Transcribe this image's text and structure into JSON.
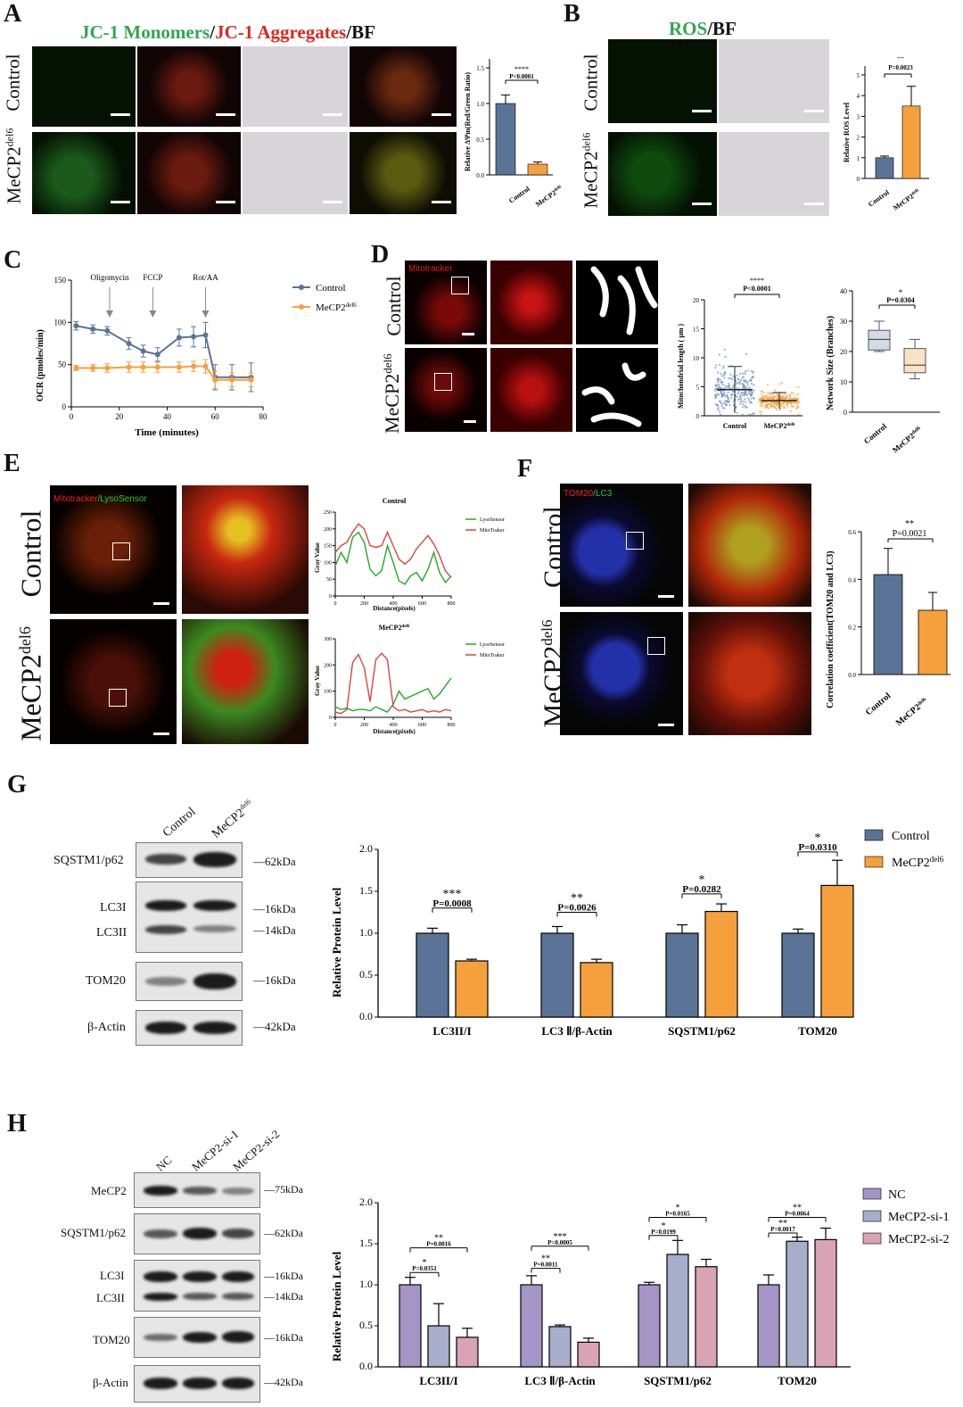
{
  "panels": {
    "A": {
      "label": "A",
      "title_green": "JC-1 Monomers",
      "title_sep": "/",
      "title_red": "JC-1 Aggregates",
      "title_end": "/BF",
      "row1": "Control",
      "row2_main": "MeCP2",
      "row2_sup": "del6",
      "chart_ylabel": "Relative ΔΨm(Red/Green Ratio)",
      "sig": "****",
      "p": "P<0.0001"
    },
    "B": {
      "label": "B",
      "title_green": "ROS",
      "title_end": "/BF",
      "row1": "Control",
      "row2_main": "MeCP2",
      "row2_sup": "del6",
      "chart_ylabel": "Relative ROS Level",
      "sig": "**",
      "p": "P=0.0023"
    },
    "C": {
      "label": "C",
      "annotations": [
        "Oligomycin",
        "FCCP",
        "Rot/AA"
      ]
    },
    "D": {
      "label": "D",
      "img_label": "Mitotracker",
      "row1": "Control",
      "row2_main": "MeCP2",
      "row2_sup": "del6",
      "sig1": "****",
      "p1": "P<0.0001",
      "sig2": "*",
      "p2": "P=0.0304"
    },
    "E": {
      "label": "E",
      "img_label_red": "Mitotracker",
      "img_label_green": "/LysoSensor",
      "row1": "Control",
      "row2_main": "MeCP2",
      "row2_sup": "del6",
      "chart1_title": "Control",
      "chart2_title_main": "MeCP2",
      "chart2_title_sup": "del6"
    },
    "F": {
      "label": "F",
      "img_label_red": "TOM20",
      "img_label_green": "/LC3",
      "row1": "Control",
      "row2_main": "MeCP2",
      "row2_sup": "del6",
      "chart_ylabel": "Correlation coefficient(TOM20 and LC3)",
      "sig": "**",
      "p": "P=0.0021"
    },
    "G": {
      "label": "G",
      "lanes": [
        "Control",
        "MeCP2del6"
      ],
      "blots": [
        {
          "name": "SQSTM1/p62",
          "kda": "62kDa"
        },
        {
          "name": "LC3I",
          "kda": "16kDa"
        },
        {
          "name": "LC3II",
          "kda": "14kDa"
        },
        {
          "name": "TOM20",
          "kda": "16kDa"
        },
        {
          "name": "β-Actin",
          "kda": "42kDa"
        }
      ],
      "sigs": [
        {
          "stars": "***",
          "p": "P=0.0008"
        },
        {
          "stars": "**",
          "p": "P=0.0026"
        },
        {
          "stars": "*",
          "p": "P=0.0282"
        },
        {
          "stars": "*",
          "p": "P=0.0310"
        }
      ]
    },
    "H": {
      "label": "H",
      "lanes": [
        "NC",
        "MeCP2-si-1",
        "MeCP2-si-2"
      ],
      "blots": [
        {
          "name": "MeCP2",
          "kda": "75kDa"
        },
        {
          "name": "SQSTM1/p62",
          "kda": "62kDa"
        },
        {
          "name": "LC3I",
          "kda": "16kDa"
        },
        {
          "name": "LC3II",
          "kda": "14kDa"
        },
        {
          "name": "TOM20",
          "kda": "16kDa"
        },
        {
          "name": "β-Actin",
          "kda": "42kDa"
        }
      ],
      "sigs": [
        {
          "stars": "*",
          "p": "P=0.0351"
        },
        {
          "stars": "**",
          "p": "P=0.0016"
        },
        {
          "stars": "**",
          "p": "P=0.0011"
        },
        {
          "stars": "***",
          "p": "P=0.0005"
        },
        {
          "stars": "*",
          "p": "P=0.0199"
        },
        {
          "stars": "*",
          "p": "P=0.0165"
        },
        {
          "stars": "**",
          "p": "P=0.0017"
        },
        {
          "stars": "**",
          "p": "P=0.0064"
        }
      ]
    }
  },
  "colors": {
    "control": "#5b7396",
    "mecp2": "#f5a03c",
    "nc": "#a595c6",
    "si1": "#a8adcb",
    "si2": "#d9a3b5",
    "green_title": "#2fa84f",
    "red_title": "#d62a1e"
  },
  "chart_data": [
    {
      "id": "A",
      "type": "bar",
      "categories": [
        "Control",
        "MeCP2del6"
      ],
      "values": [
        1.0,
        0.15
      ],
      "errors": [
        0.12,
        0.03
      ],
      "ylabel": "Relative ΔΨm(Red/Green Ratio)",
      "ylim": [
        0,
        1.5
      ],
      "yticks": [
        "0.0",
        "0.5",
        "1.0",
        "1.5"
      ]
    },
    {
      "id": "B",
      "type": "bar",
      "categories": [
        "Control",
        "MeCP2del6"
      ],
      "values": [
        1.0,
        3.5
      ],
      "errors": [
        0.08,
        0.95
      ],
      "ylabel": "Relative ROS Level",
      "ylim": [
        0,
        5
      ],
      "yticks": [
        "0",
        "1",
        "2",
        "3",
        "4",
        "5"
      ]
    },
    {
      "id": "C",
      "type": "line",
      "xlabel": "Time (minutes)",
      "ylabel": "OCR (pmoles/min)",
      "xlim": [
        0,
        80
      ],
      "ylim": [
        0,
        150
      ],
      "xticks": [
        "0",
        "20",
        "40",
        "60",
        "80"
      ],
      "yticks": [
        "0",
        "50",
        "100",
        "150"
      ],
      "series": [
        {
          "name": "Control",
          "x": [
            2,
            9,
            15,
            24,
            30,
            36,
            45,
            51,
            56,
            60,
            67,
            75
          ],
          "y": [
            96,
            92,
            90,
            75,
            66,
            62,
            82,
            83,
            85,
            35,
            35,
            35
          ],
          "err": [
            5,
            5,
            5,
            7,
            7,
            8,
            10,
            12,
            15,
            15,
            15,
            17
          ]
        },
        {
          "name": "MeCP2del6",
          "x": [
            2,
            9,
            15,
            24,
            30,
            36,
            45,
            51,
            56,
            60,
            67,
            75
          ],
          "y": [
            46,
            46,
            46,
            47,
            47,
            47,
            47,
            48,
            48,
            32,
            32,
            32
          ],
          "err": [
            3,
            4,
            5,
            6,
            6,
            6,
            6,
            6,
            8,
            10,
            8,
            8
          ]
        }
      ]
    },
    {
      "id": "D1",
      "type": "scatter",
      "categories": [
        "Control",
        "MeCP2del6"
      ],
      "means": [
        4.5,
        2.6
      ],
      "sds": [
        4.0,
        1.4
      ],
      "ylabel": "Mitochondrial length ( μm )",
      "ylim": [
        0,
        20
      ],
      "yticks": [
        "0",
        "5",
        "10",
        "15",
        "20"
      ]
    },
    {
      "id": "D2",
      "type": "box",
      "categories": [
        "Control",
        "MeCP2del6"
      ],
      "boxes": [
        {
          "min": 20,
          "q1": 20.5,
          "median": 24,
          "q3": 27,
          "max": 30
        },
        {
          "min": 11,
          "q1": 13,
          "median": 15.5,
          "q3": 21,
          "max": 24
        }
      ],
      "ylabel": "Network Size (Branches)",
      "ylim": [
        0,
        40
      ],
      "yticks": [
        "0",
        "10",
        "20",
        "30",
        "40"
      ]
    },
    {
      "id": "E1",
      "type": "line",
      "title": "Control",
      "xlabel": "Distance(pixels)",
      "ylabel": "Gray Value",
      "xlim": [
        0,
        800
      ],
      "ylim": [
        0,
        250
      ],
      "xticks": [
        "0",
        "200",
        "400",
        "600",
        "800"
      ],
      "yticks": [
        "0",
        "50",
        "100",
        "150",
        "200",
        "250"
      ],
      "series": [
        {
          "name": "LysoSensor",
          "x": [
            0,
            40,
            80,
            120,
            160,
            200,
            240,
            280,
            320,
            360,
            400,
            440,
            480,
            520,
            560,
            600,
            640,
            680,
            720,
            760,
            800
          ],
          "y": [
            90,
            130,
            100,
            175,
            190,
            160,
            80,
            60,
            75,
            150,
            100,
            45,
            35,
            60,
            70,
            45,
            80,
            130,
            70,
            40,
            60
          ]
        },
        {
          "name": "MitoTraker",
          "x": [
            0,
            40,
            80,
            120,
            160,
            200,
            240,
            280,
            320,
            360,
            400,
            440,
            480,
            520,
            560,
            600,
            640,
            680,
            720,
            760,
            800
          ],
          "y": [
            130,
            150,
            160,
            190,
            215,
            200,
            150,
            145,
            150,
            190,
            150,
            110,
            95,
            110,
            140,
            160,
            180,
            155,
            120,
            75,
            55
          ]
        }
      ]
    },
    {
      "id": "E2",
      "type": "line",
      "title": "MeCP2del6",
      "xlabel": "Distance(pixels)",
      "ylabel": "Gray Value",
      "xlim": [
        0,
        800
      ],
      "ylim": [
        0,
        300
      ],
      "xticks": [
        "0",
        "200",
        "400",
        "600",
        "800"
      ],
      "yticks": [
        "0",
        "100",
        "200",
        "300"
      ],
      "series": [
        {
          "name": "LysoSensor",
          "x": [
            0,
            40,
            80,
            120,
            160,
            200,
            240,
            280,
            320,
            360,
            400,
            440,
            480,
            520,
            560,
            600,
            640,
            680,
            720,
            760,
            800
          ],
          "y": [
            40,
            30,
            35,
            25,
            30,
            30,
            25,
            40,
            30,
            20,
            50,
            100,
            70,
            80,
            90,
            100,
            110,
            70,
            90,
            120,
            150
          ]
        },
        {
          "name": "MitoTraker",
          "x": [
            0,
            40,
            80,
            120,
            160,
            200,
            240,
            280,
            320,
            360,
            400,
            440,
            480,
            520,
            560,
            600,
            640,
            680,
            720,
            760,
            800
          ],
          "y": [
            20,
            15,
            30,
            210,
            240,
            190,
            60,
            220,
            245,
            220,
            40,
            25,
            30,
            20,
            25,
            30,
            20,
            25,
            20,
            30,
            25
          ]
        }
      ]
    },
    {
      "id": "F",
      "type": "bar",
      "categories": [
        "Control",
        "MeCP2del6"
      ],
      "values": [
        0.42,
        0.27
      ],
      "errors": [
        0.11,
        0.075
      ],
      "ylabel": "Correlation coefficient(TOM20 and LC3)",
      "ylim": [
        0,
        0.6
      ],
      "yticks": [
        "0.0",
        "0.2",
        "0.4",
        "0.6"
      ]
    },
    {
      "id": "G",
      "type": "bar",
      "categories": [
        "LC3II/I",
        "LC3 Ⅱ/β-Actin",
        "SQSTM1/p62",
        "TOM20"
      ],
      "series": [
        {
          "name": "Control",
          "values": [
            1.0,
            1.0,
            1.0,
            1.0
          ],
          "errors": [
            0.06,
            0.08,
            0.1,
            0.05
          ]
        },
        {
          "name": "MeCP2del6",
          "values": [
            0.67,
            0.65,
            1.26,
            1.57
          ],
          "errors": [
            0.02,
            0.04,
            0.09,
            0.3
          ]
        }
      ],
      "ylabel": "Relative Protein Level",
      "ylim": [
        0,
        2.0
      ],
      "yticks": [
        "0.0",
        "0.5",
        "1.0",
        "1.5",
        "2.0"
      ]
    },
    {
      "id": "H",
      "type": "bar",
      "categories": [
        "LC3II/I",
        "LC3 Ⅱ/β-Actin",
        "SQSTM1/p62",
        "TOM20"
      ],
      "series": [
        {
          "name": "NC",
          "values": [
            1.0,
            1.0,
            1.0,
            1.0
          ],
          "errors": [
            0.09,
            0.11,
            0.03,
            0.12
          ]
        },
        {
          "name": "MeCP2-si-1",
          "values": [
            0.5,
            0.49,
            1.37,
            1.53
          ],
          "errors": [
            0.27,
            0.02,
            0.17,
            0.05
          ]
        },
        {
          "name": "MeCP2-si-2",
          "values": [
            0.36,
            0.3,
            1.22,
            1.55
          ],
          "errors": [
            0.11,
            0.05,
            0.09,
            0.14
          ]
        }
      ],
      "ylabel": "Relative Protein Level",
      "ylim": [
        0,
        2.0
      ],
      "yticks": [
        "0.0",
        "0.5",
        "1.0",
        "1.5",
        "2.0"
      ]
    }
  ]
}
